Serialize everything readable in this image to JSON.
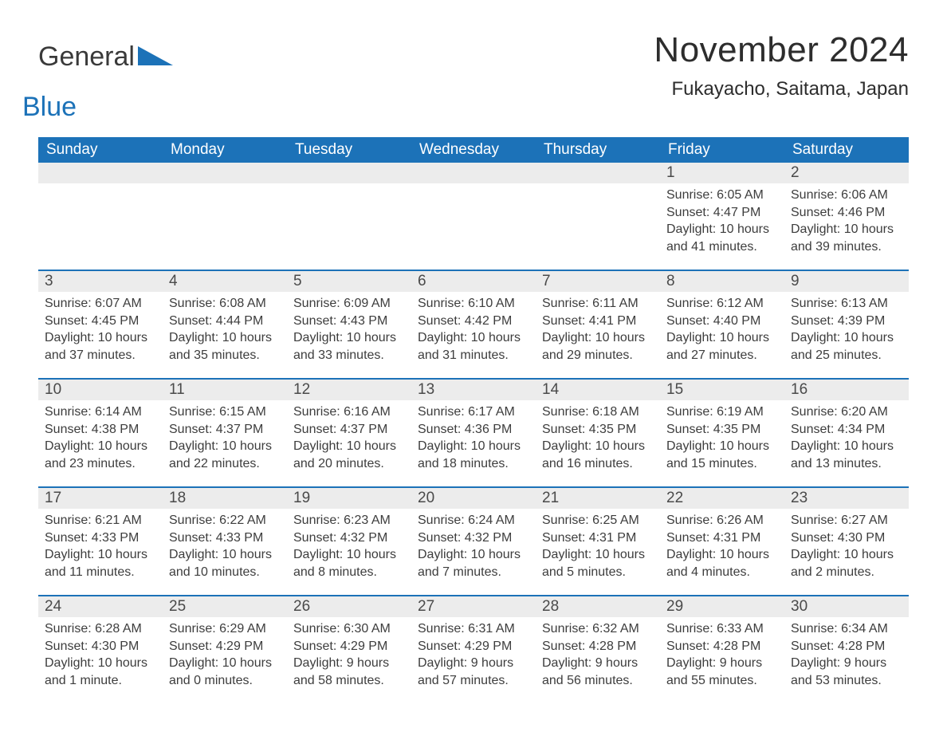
{
  "brand": {
    "part1": "General",
    "part2": "Blue",
    "text_color": "#3a3a3a",
    "accent_color": "#1c72b8"
  },
  "title": "November 2024",
  "location": "Fukayacho, Saitama, Japan",
  "colors": {
    "header_bg": "#1c72b8",
    "header_text": "#ffffff",
    "daynum_bg": "#ececec",
    "daynum_text": "#4a4a4a",
    "body_text": "#3d3d3d",
    "rule": "#1c72b8",
    "page_bg": "#ffffff"
  },
  "typography": {
    "title_fontsize": 44,
    "location_fontsize": 24,
    "header_fontsize": 19,
    "daynum_fontsize": 19,
    "body_fontsize": 16,
    "font_family": "Arial"
  },
  "day_headers": [
    "Sunday",
    "Monday",
    "Tuesday",
    "Wednesday",
    "Thursday",
    "Friday",
    "Saturday"
  ],
  "weeks": [
    [
      {
        "n": "",
        "sr": "",
        "ss": "",
        "dl": ""
      },
      {
        "n": "",
        "sr": "",
        "ss": "",
        "dl": ""
      },
      {
        "n": "",
        "sr": "",
        "ss": "",
        "dl": ""
      },
      {
        "n": "",
        "sr": "",
        "ss": "",
        "dl": ""
      },
      {
        "n": "",
        "sr": "",
        "ss": "",
        "dl": ""
      },
      {
        "n": "1",
        "sr": "Sunrise: 6:05 AM",
        "ss": "Sunset: 4:47 PM",
        "dl": "Daylight: 10 hours and 41 minutes."
      },
      {
        "n": "2",
        "sr": "Sunrise: 6:06 AM",
        "ss": "Sunset: 4:46 PM",
        "dl": "Daylight: 10 hours and 39 minutes."
      }
    ],
    [
      {
        "n": "3",
        "sr": "Sunrise: 6:07 AM",
        "ss": "Sunset: 4:45 PM",
        "dl": "Daylight: 10 hours and 37 minutes."
      },
      {
        "n": "4",
        "sr": "Sunrise: 6:08 AM",
        "ss": "Sunset: 4:44 PM",
        "dl": "Daylight: 10 hours and 35 minutes."
      },
      {
        "n": "5",
        "sr": "Sunrise: 6:09 AM",
        "ss": "Sunset: 4:43 PM",
        "dl": "Daylight: 10 hours and 33 minutes."
      },
      {
        "n": "6",
        "sr": "Sunrise: 6:10 AM",
        "ss": "Sunset: 4:42 PM",
        "dl": "Daylight: 10 hours and 31 minutes."
      },
      {
        "n": "7",
        "sr": "Sunrise: 6:11 AM",
        "ss": "Sunset: 4:41 PM",
        "dl": "Daylight: 10 hours and 29 minutes."
      },
      {
        "n": "8",
        "sr": "Sunrise: 6:12 AM",
        "ss": "Sunset: 4:40 PM",
        "dl": "Daylight: 10 hours and 27 minutes."
      },
      {
        "n": "9",
        "sr": "Sunrise: 6:13 AM",
        "ss": "Sunset: 4:39 PM",
        "dl": "Daylight: 10 hours and 25 minutes."
      }
    ],
    [
      {
        "n": "10",
        "sr": "Sunrise: 6:14 AM",
        "ss": "Sunset: 4:38 PM",
        "dl": "Daylight: 10 hours and 23 minutes."
      },
      {
        "n": "11",
        "sr": "Sunrise: 6:15 AM",
        "ss": "Sunset: 4:37 PM",
        "dl": "Daylight: 10 hours and 22 minutes."
      },
      {
        "n": "12",
        "sr": "Sunrise: 6:16 AM",
        "ss": "Sunset: 4:37 PM",
        "dl": "Daylight: 10 hours and 20 minutes."
      },
      {
        "n": "13",
        "sr": "Sunrise: 6:17 AM",
        "ss": "Sunset: 4:36 PM",
        "dl": "Daylight: 10 hours and 18 minutes."
      },
      {
        "n": "14",
        "sr": "Sunrise: 6:18 AM",
        "ss": "Sunset: 4:35 PM",
        "dl": "Daylight: 10 hours and 16 minutes."
      },
      {
        "n": "15",
        "sr": "Sunrise: 6:19 AM",
        "ss": "Sunset: 4:35 PM",
        "dl": "Daylight: 10 hours and 15 minutes."
      },
      {
        "n": "16",
        "sr": "Sunrise: 6:20 AM",
        "ss": "Sunset: 4:34 PM",
        "dl": "Daylight: 10 hours and 13 minutes."
      }
    ],
    [
      {
        "n": "17",
        "sr": "Sunrise: 6:21 AM",
        "ss": "Sunset: 4:33 PM",
        "dl": "Daylight: 10 hours and 11 minutes."
      },
      {
        "n": "18",
        "sr": "Sunrise: 6:22 AM",
        "ss": "Sunset: 4:33 PM",
        "dl": "Daylight: 10 hours and 10 minutes."
      },
      {
        "n": "19",
        "sr": "Sunrise: 6:23 AM",
        "ss": "Sunset: 4:32 PM",
        "dl": "Daylight: 10 hours and 8 minutes."
      },
      {
        "n": "20",
        "sr": "Sunrise: 6:24 AM",
        "ss": "Sunset: 4:32 PM",
        "dl": "Daylight: 10 hours and 7 minutes."
      },
      {
        "n": "21",
        "sr": "Sunrise: 6:25 AM",
        "ss": "Sunset: 4:31 PM",
        "dl": "Daylight: 10 hours and 5 minutes."
      },
      {
        "n": "22",
        "sr": "Sunrise: 6:26 AM",
        "ss": "Sunset: 4:31 PM",
        "dl": "Daylight: 10 hours and 4 minutes."
      },
      {
        "n": "23",
        "sr": "Sunrise: 6:27 AM",
        "ss": "Sunset: 4:30 PM",
        "dl": "Daylight: 10 hours and 2 minutes."
      }
    ],
    [
      {
        "n": "24",
        "sr": "Sunrise: 6:28 AM",
        "ss": "Sunset: 4:30 PM",
        "dl": "Daylight: 10 hours and 1 minute."
      },
      {
        "n": "25",
        "sr": "Sunrise: 6:29 AM",
        "ss": "Sunset: 4:29 PM",
        "dl": "Daylight: 10 hours and 0 minutes."
      },
      {
        "n": "26",
        "sr": "Sunrise: 6:30 AM",
        "ss": "Sunset: 4:29 PM",
        "dl": "Daylight: 9 hours and 58 minutes."
      },
      {
        "n": "27",
        "sr": "Sunrise: 6:31 AM",
        "ss": "Sunset: 4:29 PM",
        "dl": "Daylight: 9 hours and 57 minutes."
      },
      {
        "n": "28",
        "sr": "Sunrise: 6:32 AM",
        "ss": "Sunset: 4:28 PM",
        "dl": "Daylight: 9 hours and 56 minutes."
      },
      {
        "n": "29",
        "sr": "Sunrise: 6:33 AM",
        "ss": "Sunset: 4:28 PM",
        "dl": "Daylight: 9 hours and 55 minutes."
      },
      {
        "n": "30",
        "sr": "Sunrise: 6:34 AM",
        "ss": "Sunset: 4:28 PM",
        "dl": "Daylight: 9 hours and 53 minutes."
      }
    ]
  ]
}
